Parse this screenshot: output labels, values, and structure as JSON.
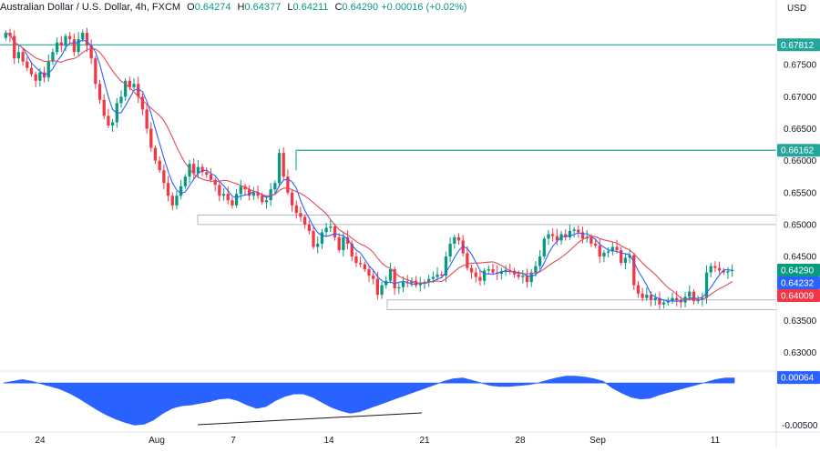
{
  "header": {
    "symbol": "Australian Dollar / U.S. Dollar, 4h, FXCM",
    "open_label": "O",
    "open": "0.64274",
    "high_label": "H",
    "high": "0.64377",
    "low_label": "L",
    "low": "0.64211",
    "close_label": "C",
    "close": "0.64290",
    "change": "+0.00016 (+0.02%)"
  },
  "colors": {
    "up": "#089981",
    "down": "#f23645",
    "ma_fast": "#2962ff",
    "ma_slow": "#e04b57",
    "level_line": "#26a69a",
    "support_zone": "#d8dde6",
    "oscillator": "#2962ff",
    "axis_text": "#131722"
  },
  "chart_data": [
    {
      "type": "candlestick",
      "title": "Australian Dollar / U.S. Dollar, 4h, FXCM",
      "currency_label": "USD",
      "ylim": [
        0.6275,
        0.683
      ],
      "y_ticks": [
        "0.67500",
        "0.67000",
        "0.66500",
        "0.66000",
        "0.65500",
        "0.65000",
        "0.64500",
        "0.64000",
        "0.63500",
        "0.63000"
      ],
      "x_ticks": [
        "24",
        "Aug",
        "7",
        "14",
        "21",
        "28",
        "Sep",
        "11"
      ],
      "price_labels": [
        {
          "text": "0.67812",
          "value": 0.67812,
          "color": "#26a69a"
        },
        {
          "text": "0.66162",
          "value": 0.66162,
          "color": "#26a69a"
        },
        {
          "text": "0.64290",
          "value": 0.6429,
          "color": "#089981"
        },
        {
          "text": "0.64232",
          "value": 0.64232,
          "color": "#2962ff"
        },
        {
          "text": "0.64009",
          "value": 0.64009,
          "color": "#f23645"
        }
      ],
      "levels": [
        {
          "name": "resistance",
          "value": 0.67812
        },
        {
          "name": "breakout-level",
          "value": 0.66162
        }
      ],
      "zones": [
        {
          "name": "resistance-zone",
          "low": 0.65,
          "high": 0.6515
        },
        {
          "name": "support-zone",
          "low": 0.6367,
          "high": 0.6382
        }
      ],
      "closes": [
        0.68,
        0.6795,
        0.676,
        0.677,
        0.6755,
        0.6745,
        0.6735,
        0.6725,
        0.6738,
        0.673,
        0.6755,
        0.677,
        0.6785,
        0.678,
        0.6795,
        0.679,
        0.677,
        0.679,
        0.68,
        0.678,
        0.676,
        0.672,
        0.6695,
        0.667,
        0.6655,
        0.666,
        0.669,
        0.67,
        0.6725,
        0.6715,
        0.672,
        0.67,
        0.668,
        0.665,
        0.662,
        0.66,
        0.6585,
        0.6565,
        0.6545,
        0.653,
        0.6545,
        0.656,
        0.6575,
        0.6595,
        0.658,
        0.659,
        0.6582,
        0.6578,
        0.657,
        0.6562,
        0.6545,
        0.6548,
        0.6538,
        0.653,
        0.6548,
        0.656,
        0.6555,
        0.6545,
        0.655,
        0.6545,
        0.6535,
        0.6538,
        0.6555,
        0.6565,
        0.6612,
        0.6575,
        0.655,
        0.653,
        0.6518,
        0.6512,
        0.65,
        0.649,
        0.6465,
        0.647,
        0.6488,
        0.6495,
        0.6497,
        0.648,
        0.646,
        0.648,
        0.647,
        0.645,
        0.644,
        0.6438,
        0.643,
        0.642,
        0.6415,
        0.639,
        0.6405,
        0.6412,
        0.643,
        0.64,
        0.6402,
        0.641,
        0.6408,
        0.6412,
        0.6405,
        0.6408,
        0.641,
        0.6415,
        0.6418,
        0.6422,
        0.642,
        0.645,
        0.647,
        0.648,
        0.6475,
        0.6455,
        0.6432,
        0.6425,
        0.6418,
        0.6412,
        0.6428,
        0.643,
        0.6425,
        0.6423,
        0.6427,
        0.6429,
        0.6428,
        0.6422,
        0.6418,
        0.642,
        0.641,
        0.6425,
        0.6435,
        0.645,
        0.6478,
        0.6485,
        0.6482,
        0.6475,
        0.6485,
        0.648,
        0.649,
        0.6492,
        0.6488,
        0.6478,
        0.648,
        0.647,
        0.6467,
        0.645,
        0.6456,
        0.6458,
        0.6465,
        0.646,
        0.644,
        0.6448,
        0.6452,
        0.6405,
        0.6392,
        0.6385,
        0.639,
        0.6382,
        0.6385,
        0.6375,
        0.6378,
        0.638,
        0.6385,
        0.6382,
        0.6378,
        0.6387,
        0.6395,
        0.638,
        0.6382,
        0.6385,
        0.6425,
        0.6435,
        0.6432,
        0.6428,
        0.6425,
        0.6427,
        0.6429
      ],
      "ma_fast_last": 0.64232,
      "ma_slow_last": 0.64009
    },
    {
      "type": "area",
      "name": "oscillator",
      "ylim": [
        -0.0055,
        0.0012
      ],
      "y_ticks": [
        "-0.00500"
      ],
      "value_label": {
        "text": "0.00064",
        "value": 0.00064
      },
      "values": [
        0.0,
        0.0002,
        0.0004,
        0.0002,
        -0.0001,
        -0.0004,
        -0.0007,
        -0.0012,
        -0.0018,
        -0.0025,
        -0.0032,
        -0.0038,
        -0.0043,
        -0.0047,
        -0.005,
        -0.0049,
        -0.0044,
        -0.0036,
        -0.003,
        -0.0027,
        -0.0026,
        -0.0024,
        -0.0022,
        -0.0019,
        -0.0018,
        -0.0021,
        -0.0026,
        -0.003,
        -0.0028,
        -0.0021,
        -0.0016,
        -0.0013,
        -0.0013,
        -0.0017,
        -0.0023,
        -0.0029,
        -0.0033,
        -0.0036,
        -0.0034,
        -0.003,
        -0.0026,
        -0.0022,
        -0.0018,
        -0.0014,
        -0.001,
        -0.0006,
        -0.0002,
        0.0002,
        0.0005,
        0.0006,
        0.0003,
        0.0,
        -0.0003,
        -0.0004,
        -0.0004,
        -0.0003,
        -0.0002,
        0.0,
        0.0003,
        0.0006,
        0.0008,
        0.0008,
        0.0007,
        0.0005,
        0.0002,
        -0.0006,
        -0.0012,
        -0.0017,
        -0.0019,
        -0.0018,
        -0.0014,
        -0.0011,
        -0.0008,
        -0.0005,
        -0.0002,
        0.0001,
        0.0004,
        0.0006,
        0.0006
      ]
    }
  ]
}
